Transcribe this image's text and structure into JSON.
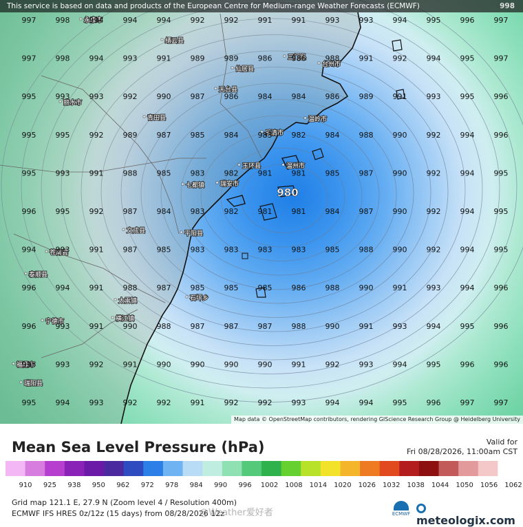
{
  "banner": {
    "text": "This service is based on data and products of the European Centre for Medium-range Weather Forecasts (ECMWF)",
    "run_tag": "998"
  },
  "map": {
    "attribution": "Map data © OpenStreetMap contributors, rendering GIScience Research Group @ Heidelberg University",
    "low_center_label": "980",
    "pressure_grid": [
      [
        997,
        998,
        994,
        994,
        994,
        992,
        992,
        991,
        991,
        993,
        993,
        994,
        995,
        996,
        997
      ],
      [
        997,
        998,
        994,
        993,
        991,
        989,
        989,
        986,
        986,
        988,
        991,
        992,
        994,
        995,
        997
      ],
      [
        995,
        993,
        993,
        992,
        990,
        987,
        986,
        984,
        984,
        986,
        989,
        991,
        993,
        995,
        996
      ],
      [
        995,
        995,
        992,
        989,
        987,
        985,
        984,
        983,
        982,
        984,
        988,
        990,
        992,
        994,
        996
      ],
      [
        995,
        993,
        991,
        988,
        985,
        983,
        982,
        981,
        981,
        985,
        987,
        990,
        992,
        994,
        995
      ],
      [
        996,
        995,
        992,
        987,
        984,
        983,
        982,
        981,
        981,
        984,
        987,
        990,
        992,
        994,
        995
      ],
      [
        994,
        993,
        991,
        987,
        985,
        983,
        983,
        983,
        983,
        985,
        988,
        990,
        992,
        994,
        995
      ],
      [
        996,
        994,
        991,
        988,
        987,
        985,
        985,
        985,
        986,
        988,
        990,
        991,
        993,
        994,
        996
      ],
      [
        996,
        993,
        991,
        990,
        988,
        987,
        987,
        987,
        988,
        990,
        991,
        993,
        994,
        995,
        996
      ],
      [
        995,
        993,
        992,
        991,
        990,
        990,
        990,
        990,
        991,
        992,
        993,
        994,
        995,
        996,
        996
      ],
      [
        995,
        994,
        993,
        992,
        992,
        991,
        992,
        992,
        993,
        994,
        994,
        995,
        996,
        997,
        997
      ]
    ],
    "cities": [
      "永康市",
      "缙云县",
      "仙居县",
      "三门县",
      "台州市",
      "天台县",
      "丽水市",
      "青田县",
      "温岭市",
      "乐清市",
      "玉环县",
      "温州市",
      "七都镇",
      "瑞安市",
      "平阳县",
      "文成县",
      "泰顺县",
      "苍南县",
      "福鼎市",
      "瑞阳县",
      "太雷镇",
      "石坪乡",
      "横江镇",
      "宁德市"
    ]
  },
  "footer": {
    "title": "Mean Sea Level Pressure (hPa)",
    "valid_label": "Valid for",
    "valid_time": "Fri 08/28/2026, 11:00am CST",
    "meta_line1": "Grid map 121.1 E, 27.9 N (Zoom level 4 / Resolution 400m)",
    "meta_line2": "ECMWF IFS HRES 0z/12z (15 days) from 08/28/2026 12z",
    "watermark": "@Weather爱好者",
    "ecmwf_label": "ECMWF",
    "brand": "meteologix.com"
  },
  "colorbar": {
    "ticks": [
      "910",
      "925",
      "938",
      "950",
      "962",
      "972",
      "978",
      "984",
      "990",
      "996",
      "1002",
      "1008",
      "1014",
      "1020",
      "1026",
      "1032",
      "1038",
      "1044",
      "1050",
      "1056",
      "1062"
    ],
    "colors": [
      "#f3b7f5",
      "#d77de0",
      "#b63fcf",
      "#8b22b8",
      "#6a1aa6",
      "#4b2aa0",
      "#2e4cc0",
      "#2d7fe8",
      "#6fb3f2",
      "#b9dcf6",
      "#bfeee0",
      "#8fe0b2",
      "#55c97a",
      "#2fb24c",
      "#66d030",
      "#b8e22a",
      "#f2e22a",
      "#f4b52a",
      "#ee7a22",
      "#e04a1e",
      "#b41d1d",
      "#8c1010",
      "#c25a5a",
      "#e29a9a",
      "#f4c8c8",
      "#ffffff"
    ]
  }
}
